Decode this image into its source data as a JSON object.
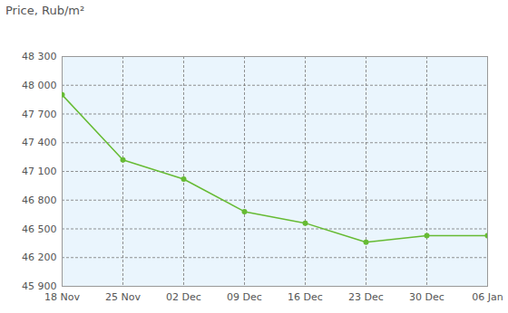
{
  "chart_data": {
    "type": "line",
    "title": "Price, Rub/m²",
    "categories": [
      "18 Nov",
      "25 Nov",
      "02 Dec",
      "09 Dec",
      "16 Dec",
      "23 Dec",
      "30 Dec",
      "06 Jan"
    ],
    "values": [
      47900,
      47220,
      47020,
      46680,
      46560,
      46360,
      46430,
      46430
    ],
    "color": "#66bb33",
    "marker": "circle",
    "line_style": "solid",
    "ylim": [
      45900,
      48300
    ],
    "yticks": [
      {
        "value": 45900,
        "label": "45 900"
      },
      {
        "value": 46200,
        "label": "46 200"
      },
      {
        "value": 46500,
        "label": "46 500"
      },
      {
        "value": 46800,
        "label": "46 800"
      },
      {
        "value": 47100,
        "label": "47 100"
      },
      {
        "value": 47400,
        "label": "47 400"
      },
      {
        "value": 47700,
        "label": "47 700"
      },
      {
        "value": 48000,
        "label": "48 000"
      },
      {
        "value": 48300,
        "label": "48 300"
      }
    ],
    "grid": true
  }
}
